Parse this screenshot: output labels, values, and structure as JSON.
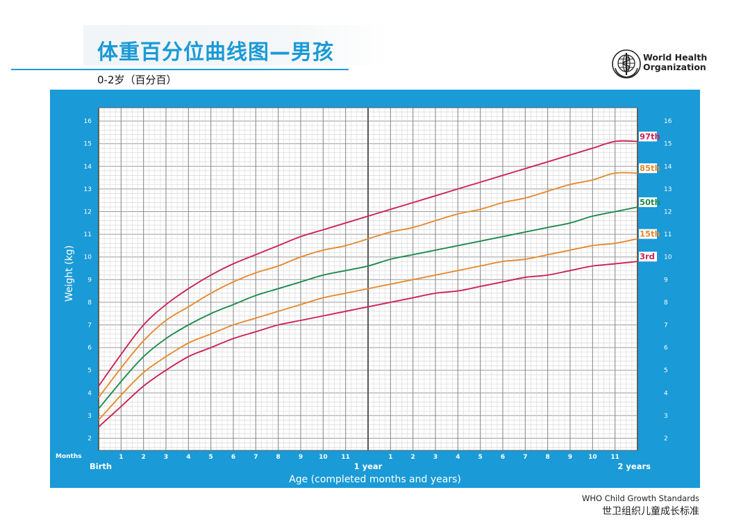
{
  "header": {
    "title": "体重百分位曲线图—男孩",
    "subtitle": "0-2岁（百分百）",
    "org_line1": "World Health",
    "org_line2": "Organization"
  },
  "footer": {
    "line1": "WHO Child Growth Standards",
    "line2": "世卫组织儿童成长标准"
  },
  "colors": {
    "frame": "#1a9ad6",
    "grid": "#8c8c8c",
    "p3": "#cc2255",
    "p15": "#e58a2e",
    "p50": "#1e8a4c",
    "p85": "#e58a2e",
    "p97": "#cc2255"
  },
  "chart_data": {
    "type": "line",
    "xlabel": "Age (completed months and years)",
    "ylabel": "Weight (kg)",
    "x_unit_label": "Months",
    "x_range": [
      0,
      24
    ],
    "ylim": [
      1.5,
      17
    ],
    "y_ticks": [
      2,
      3,
      4,
      5,
      6,
      7,
      8,
      9,
      10,
      11,
      12,
      13,
      14,
      15,
      16
    ],
    "x_ticks": [
      {
        "month": 0,
        "label": "Birth",
        "major": true
      },
      {
        "month": 1,
        "label": "1"
      },
      {
        "month": 2,
        "label": "2"
      },
      {
        "month": 3,
        "label": "3"
      },
      {
        "month": 4,
        "label": "4"
      },
      {
        "month": 5,
        "label": "5"
      },
      {
        "month": 6,
        "label": "6"
      },
      {
        "month": 7,
        "label": "7"
      },
      {
        "month": 8,
        "label": "8"
      },
      {
        "month": 9,
        "label": "9"
      },
      {
        "month": 10,
        "label": "10"
      },
      {
        "month": 11,
        "label": "11"
      },
      {
        "month": 12,
        "label": "1 year",
        "major": true
      },
      {
        "month": 13,
        "label": "1"
      },
      {
        "month": 14,
        "label": "2"
      },
      {
        "month": 15,
        "label": "3"
      },
      {
        "month": 16,
        "label": "4"
      },
      {
        "month": 17,
        "label": "5"
      },
      {
        "month": 18,
        "label": "6"
      },
      {
        "month": 19,
        "label": "7"
      },
      {
        "month": 20,
        "label": "8"
      },
      {
        "month": 21,
        "label": "9"
      },
      {
        "month": 22,
        "label": "10"
      },
      {
        "month": 23,
        "label": "11"
      },
      {
        "month": 24,
        "label": "2 years",
        "major": true
      }
    ],
    "grid": true,
    "x": [
      0,
      1,
      2,
      3,
      4,
      5,
      6,
      7,
      8,
      9,
      10,
      11,
      12,
      13,
      14,
      15,
      16,
      17,
      18,
      19,
      20,
      21,
      22,
      23,
      24
    ],
    "series": [
      {
        "name": "97th",
        "color_key": "p97",
        "values": [
          4.3,
          5.7,
          7.0,
          7.9,
          8.6,
          9.2,
          9.7,
          10.1,
          10.5,
          10.9,
          11.2,
          11.5,
          11.8,
          12.1,
          12.4,
          12.7,
          13.0,
          13.3,
          13.6,
          13.9,
          14.2,
          14.5,
          14.8,
          15.1,
          15.1
        ]
      },
      {
        "name": "85th",
        "color_key": "p85",
        "values": [
          3.8,
          5.1,
          6.3,
          7.2,
          7.8,
          8.4,
          8.9,
          9.3,
          9.6,
          10.0,
          10.3,
          10.5,
          10.8,
          11.1,
          11.3,
          11.6,
          11.9,
          12.1,
          12.4,
          12.6,
          12.9,
          13.2,
          13.4,
          13.7,
          13.7
        ]
      },
      {
        "name": "50th",
        "color_key": "p50",
        "values": [
          3.3,
          4.5,
          5.6,
          6.4,
          7.0,
          7.5,
          7.9,
          8.3,
          8.6,
          8.9,
          9.2,
          9.4,
          9.6,
          9.9,
          10.1,
          10.3,
          10.5,
          10.7,
          10.9,
          11.1,
          11.3,
          11.5,
          11.8,
          12.0,
          12.2
        ]
      },
      {
        "name": "15th",
        "color_key": "p15",
        "values": [
          2.8,
          3.9,
          4.9,
          5.6,
          6.2,
          6.6,
          7.0,
          7.3,
          7.6,
          7.9,
          8.2,
          8.4,
          8.6,
          8.8,
          9.0,
          9.2,
          9.4,
          9.6,
          9.8,
          9.9,
          10.1,
          10.3,
          10.5,
          10.6,
          10.8
        ]
      },
      {
        "name": "3rd",
        "color_key": "p3",
        "values": [
          2.5,
          3.4,
          4.3,
          5.0,
          5.6,
          6.0,
          6.4,
          6.7,
          7.0,
          7.2,
          7.4,
          7.6,
          7.8,
          8.0,
          8.2,
          8.4,
          8.5,
          8.7,
          8.9,
          9.1,
          9.2,
          9.4,
          9.6,
          9.7,
          9.8
        ]
      }
    ]
  }
}
